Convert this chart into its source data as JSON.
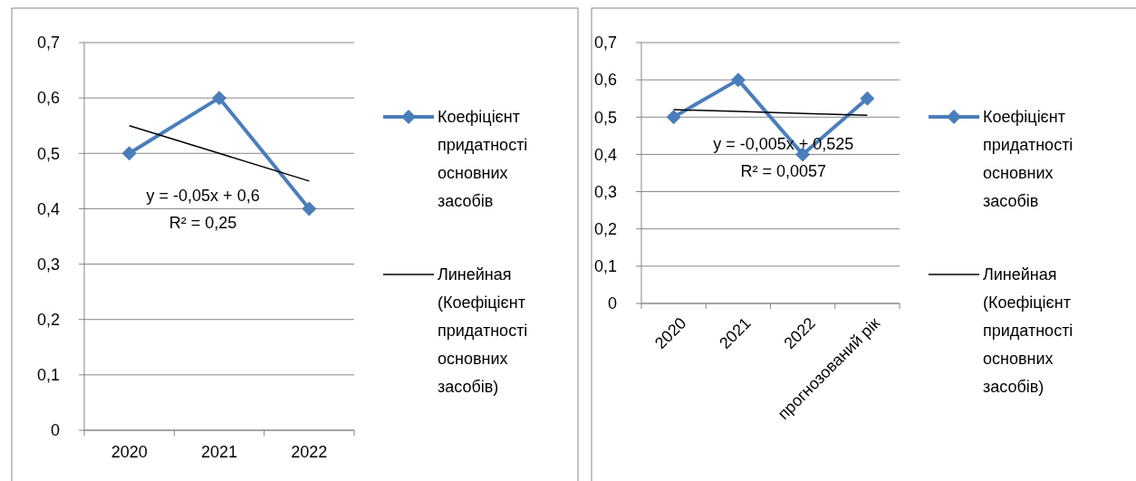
{
  "chart_data": [
    {
      "type": "line",
      "categories": [
        "2020",
        "2021",
        "2022"
      ],
      "series": [
        {
          "name": "Коефіцієнт придатності основних засобів",
          "color": "#4a7ebb",
          "values": [
            0.5,
            0.6,
            0.4
          ],
          "marker": "diamond"
        },
        {
          "name": "Линейная (Коефіцієнт придатності основних засобів)",
          "color": "#000000",
          "values": [
            0.55,
            0.5,
            0.45
          ],
          "marker": "none"
        }
      ],
      "ylim": [
        0,
        0.7
      ],
      "yticks": [
        0,
        {
          "value": 0.1,
          "label": "0,1"
        },
        {
          "value": 0.2,
          "label": "0,2"
        },
        {
          "value": 0.3,
          "label": "0,3"
        },
        {
          "value": 0.4,
          "label": "0,4"
        },
        {
          "value": 0.5,
          "label": "0,5"
        },
        {
          "value": 0.6,
          "label": "0,6"
        },
        {
          "value": 0.7,
          "label": "0,7"
        }
      ],
      "annotations": [
        "y = -0,05x + 0,6",
        "R² = 0,25"
      ],
      "grid": "y",
      "legend": "right",
      "line_style": "solid"
    },
    {
      "type": "line",
      "categories": [
        "2020",
        "2021",
        "2022",
        "прогнозований рік"
      ],
      "series": [
        {
          "name": "Коефіцієнт придатності основних засобів",
          "color": "#4a7ebb",
          "values": [
            0.5,
            0.6,
            0.4,
            0.55
          ],
          "marker": "diamond"
        },
        {
          "name": "Линейная (Коефіцієнт придатності основних засобів)",
          "color": "#000000",
          "values": [
            0.52,
            0.515,
            0.51,
            0.505
          ],
          "marker": "none"
        }
      ],
      "ylim": [
        0,
        0.7
      ],
      "yticks": [
        0,
        {
          "value": 0.1,
          "label": "0,1"
        },
        {
          "value": 0.2,
          "label": "0,2"
        },
        {
          "value": 0.3,
          "label": "0,3"
        },
        {
          "value": 0.4,
          "label": "0,4"
        },
        {
          "value": 0.5,
          "label": "0,5"
        },
        {
          "value": 0.6,
          "label": "0,6"
        },
        {
          "value": 0.7,
          "label": "0,7"
        }
      ],
      "annotations": [
        "y = -0,005x + 0,525",
        "R² = 0,0057"
      ],
      "grid": "y",
      "legend": "right",
      "line_style": "solid"
    }
  ]
}
